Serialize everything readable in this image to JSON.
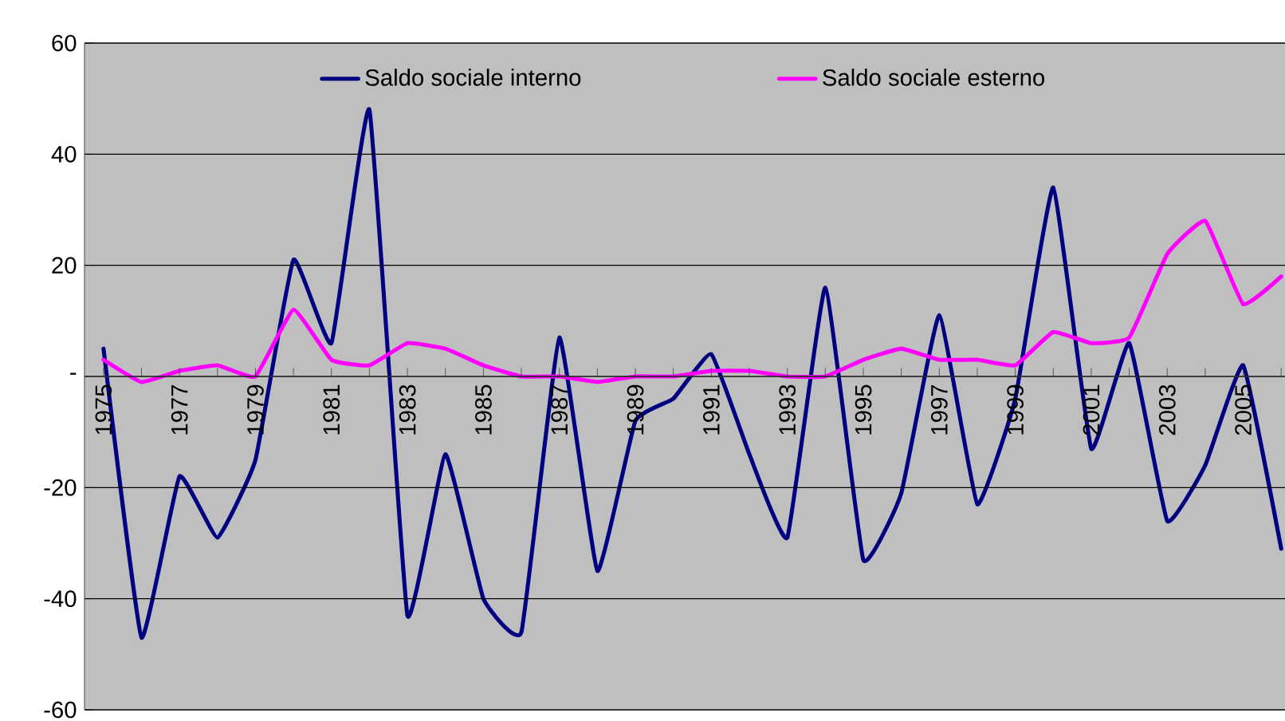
{
  "chart_data": {
    "type": "line",
    "categories": [
      "1975",
      null,
      "1977",
      null,
      "1979",
      null,
      "1981",
      null,
      "1983",
      null,
      "1985",
      null,
      "1987",
      null,
      "1989",
      null,
      "1991",
      null,
      "1993",
      null,
      "1995",
      null,
      "1997",
      null,
      "1999",
      null,
      "2001",
      null,
      "2003",
      null,
      "2005",
      null
    ],
    "series": [
      {
        "name": "Saldo sociale interno",
        "color": "#000080",
        "values": [
          5,
          -47,
          -18,
          -29,
          -15,
          21,
          6,
          48,
          -43,
          -14,
          -40,
          -46,
          7,
          -35,
          -8,
          -4,
          4,
          -14,
          -29,
          16,
          -33,
          -21,
          11,
          -23,
          -4,
          34,
          -13,
          6,
          -26,
          -16,
          2,
          -31
        ]
      },
      {
        "name": "Saldo sociale esterno",
        "color": "#ff00ff",
        "values": [
          3,
          -1,
          1,
          2,
          0,
          12,
          3,
          2,
          6,
          5,
          2,
          0,
          0,
          -1,
          0,
          0,
          1,
          1,
          0,
          0,
          3,
          5,
          3,
          3,
          2,
          8,
          6,
          7,
          22,
          28,
          13,
          18
        ]
      }
    ],
    "ylim": [
      -60,
      60
    ],
    "yticks": [
      60,
      40,
      20,
      {
        "value": 0,
        "label": "-"
      },
      -20,
      -40,
      -60
    ],
    "grid": "y",
    "legend": "top"
  }
}
